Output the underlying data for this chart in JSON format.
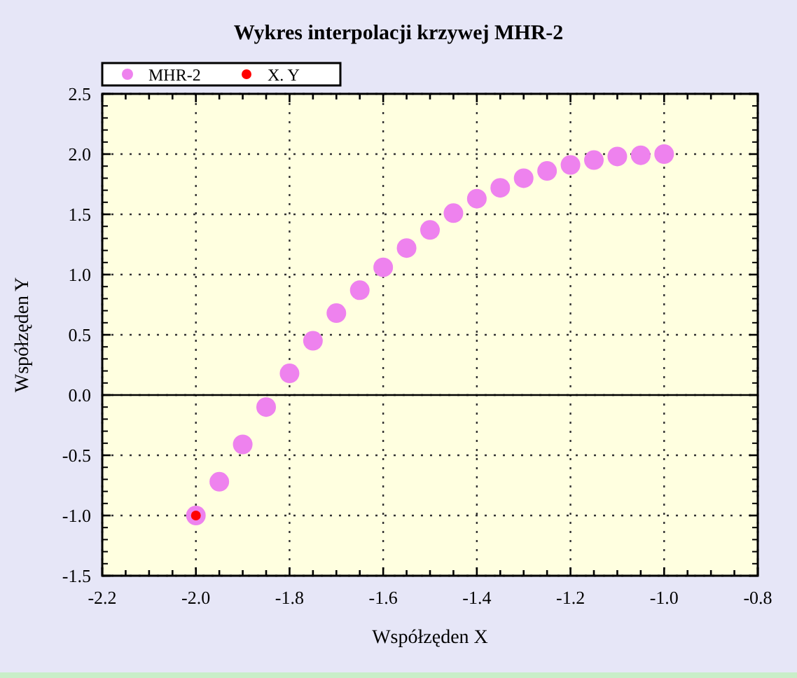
{
  "chart_data": {
    "type": "scatter",
    "title": "Wykres interpolacji krzywej MHR-2",
    "xlabel": "Współzęden X",
    "ylabel": "Współzęden Y",
    "series": [
      {
        "name": "MHR-2",
        "color": "#ee82ee",
        "x": [
          -2.0,
          -1.95,
          -1.9,
          -1.85,
          -1.8,
          -1.75,
          -1.7,
          -1.65,
          -1.6,
          -1.55,
          -1.5,
          -1.45,
          -1.4,
          -1.35,
          -1.3,
          -1.25,
          -1.2,
          -1.15,
          -1.1,
          -1.05,
          -1.0
        ],
        "values": [
          -1.0,
          -0.72,
          -0.41,
          -0.1,
          0.18,
          0.45,
          0.68,
          0.87,
          1.06,
          1.22,
          1.37,
          1.51,
          1.63,
          1.72,
          1.8,
          1.86,
          1.91,
          1.95,
          1.98,
          1.99,
          2.0
        ]
      },
      {
        "name": "X. Y",
        "color": "#ff0000",
        "x": [
          -2.0
        ],
        "values": [
          -1.0
        ]
      }
    ],
    "xlim": [
      -2.2,
      -0.8
    ],
    "xticks": [
      -2.2,
      {
        "value": -2.15,
        "label": null
      },
      {
        "value": -2.1,
        "label": null
      },
      {
        "value": -2.05,
        "label": null
      },
      {
        "value": -2.0,
        "label": "-2.0"
      },
      {
        "value": -1.95,
        "label": null
      },
      {
        "value": -1.9,
        "label": null
      },
      {
        "value": -1.85,
        "label": null
      },
      -1.8,
      {
        "value": -1.75,
        "label": null
      },
      {
        "value": -1.7,
        "label": null
      },
      {
        "value": -1.65,
        "label": null
      },
      -1.6,
      {
        "value": -1.55,
        "label": null
      },
      {
        "value": -1.5,
        "label": null
      },
      {
        "value": -1.45,
        "label": null
      },
      -1.4,
      {
        "value": -1.35,
        "label": null
      },
      {
        "value": -1.3,
        "label": null
      },
      {
        "value": -1.25,
        "label": null
      },
      -1.2,
      {
        "value": -1.15,
        "label": null
      },
      {
        "value": -1.1,
        "label": null
      },
      {
        "value": -1.05,
        "label": null
      },
      {
        "value": -1.0,
        "label": "-1.0"
      },
      {
        "value": -0.95,
        "label": null
      },
      {
        "value": -0.9,
        "label": null
      },
      {
        "value": -0.85,
        "label": null
      },
      -0.8
    ],
    "ylim": [
      -1.5,
      2.5
    ],
    "yticks": [
      {
        "value": -1.5,
        "label": "-1.5"
      },
      {
        "value": -1.0,
        "label": "-1.0"
      },
      {
        "value": -0.5,
        "label": "-0.5"
      },
      {
        "value": 0,
        "label": "0.0"
      },
      0.5,
      {
        "value": 1.0,
        "label": "1.0"
      },
      1.5,
      {
        "value": 2.0,
        "label": "2.0"
      },
      2.5
    ],
    "ref_lines": [
      {
        "axis": "y",
        "value": 0,
        "color": "#000000"
      }
    ],
    "grid": true,
    "legend": "top left",
    "marker": "circle"
  }
}
